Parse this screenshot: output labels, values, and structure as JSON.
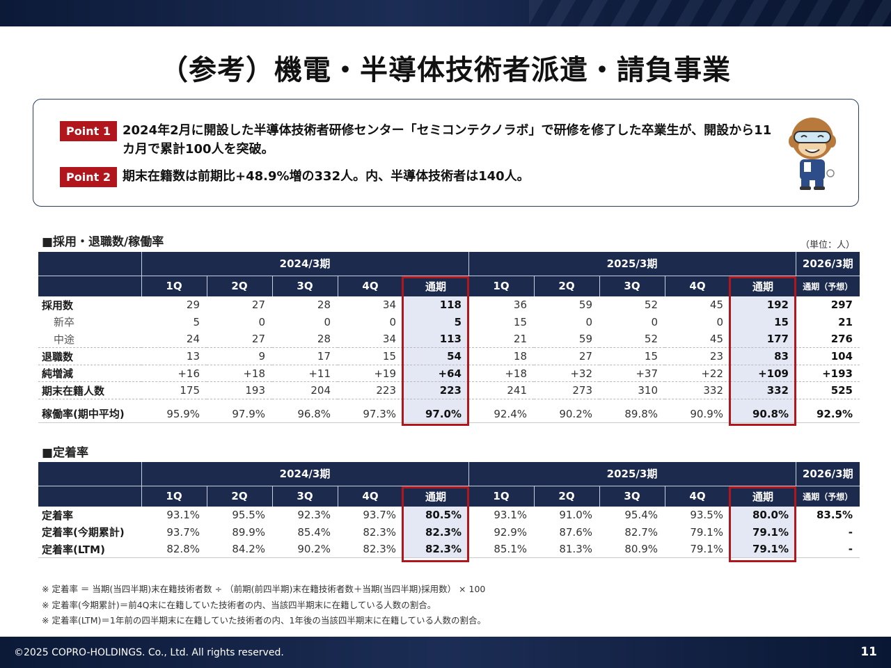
{
  "title": "（参考）機電・半導体技術者派遣・請負事業",
  "points": [
    {
      "tag": "Point 1",
      "text": "2024年2月に開設した半導体技術者研修センター「セミコンテクノラボ」で研修を修了した卒業生が、開設から11カ月で累計100人を突破。"
    },
    {
      "tag": "Point 2",
      "text": "期末在籍数は前期比+48.9%増の332人。内、半導体技術者は140人。"
    }
  ],
  "section1": {
    "label": "■採用・退職数/稼働率",
    "unit": "（単位：人）",
    "periods": [
      "2024/3期",
      "2025/3期",
      "2026/3期"
    ],
    "quarters": [
      "1Q",
      "2Q",
      "3Q",
      "4Q",
      "通期"
    ],
    "forecast_label": "通期（予想）",
    "rows": [
      {
        "label": "採用数",
        "values": [
          "29",
          "27",
          "28",
          "34",
          "118",
          "36",
          "59",
          "52",
          "45",
          "192",
          "297"
        ]
      },
      {
        "label": "新卒",
        "values": [
          "5",
          "0",
          "0",
          "0",
          "5",
          "15",
          "0",
          "0",
          "0",
          "15",
          "21"
        ]
      },
      {
        "label": "中途",
        "values": [
          "24",
          "27",
          "28",
          "34",
          "113",
          "21",
          "59",
          "52",
          "45",
          "177",
          "276"
        ]
      },
      {
        "label": "退職数",
        "values": [
          "13",
          "9",
          "17",
          "15",
          "54",
          "18",
          "27",
          "15",
          "23",
          "83",
          "104"
        ]
      },
      {
        "label": "純増減",
        "values": [
          "+16",
          "+18",
          "+11",
          "+19",
          "+64",
          "+18",
          "+32",
          "+37",
          "+22",
          "+109",
          "+193"
        ]
      },
      {
        "label": "期末在籍人数",
        "values": [
          "175",
          "193",
          "204",
          "223",
          "223",
          "241",
          "273",
          "310",
          "332",
          "332",
          "525"
        ]
      },
      {
        "label": "稼働率(期中平均)",
        "values": [
          "95.9%",
          "97.9%",
          "96.8%",
          "97.3%",
          "97.0%",
          "92.4%",
          "90.2%",
          "89.8%",
          "90.9%",
          "90.8%",
          "92.9%"
        ]
      }
    ]
  },
  "section2": {
    "label": "■定着率",
    "periods": [
      "2024/3期",
      "2025/3期",
      "2026/3期"
    ],
    "quarters": [
      "1Q",
      "2Q",
      "3Q",
      "4Q",
      "通期"
    ],
    "forecast_label": "通期（予想）",
    "rows": [
      {
        "label": "定着率",
        "values": [
          "93.1%",
          "95.5%",
          "92.3%",
          "93.7%",
          "80.5%",
          "93.1%",
          "91.0%",
          "95.4%",
          "93.5%",
          "80.0%",
          "83.5%"
        ]
      },
      {
        "label": "定着率(今期累計)",
        "values": [
          "93.7%",
          "89.9%",
          "85.4%",
          "82.3%",
          "82.3%",
          "92.9%",
          "87.6%",
          "82.7%",
          "79.1%",
          "79.1%",
          "-"
        ]
      },
      {
        "label": "定着率(LTM)",
        "values": [
          "82.8%",
          "84.2%",
          "90.2%",
          "82.3%",
          "82.3%",
          "85.1%",
          "81.3%",
          "80.9%",
          "79.1%",
          "79.1%",
          "-"
        ]
      }
    ]
  },
  "notes": [
    "※ 定着率 ＝ 当期(当四半期)末在籍技術者数 ÷ （前期(前四半期)末在籍技術者数＋当期(当四半期)採用数） × 100",
    "※ 定着率(今期累計)＝前4Q末に在籍していた技術者の内、当該四半期末に在籍している人数の割合。",
    "※ 定着率(LTM)＝1年前の四半期末に在籍していた技術者の内、1年後の当該四半期末に在籍している人数の割合。"
  ],
  "footer": {
    "copyright": "©2025 COPRO-HOLDINGS. Co., Ltd. All rights reserved.",
    "page": "11"
  },
  "colors": {
    "navy": "#1c2a4e",
    "red": "#b0161c",
    "highlight": "#e4e8f4"
  }
}
